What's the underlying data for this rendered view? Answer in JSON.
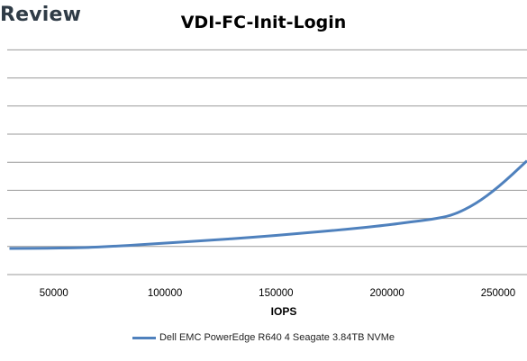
{
  "brand": {
    "text": "Review"
  },
  "chart_data": {
    "type": "line",
    "title": "VDI-FC-Init-Login",
    "xlabel": "IOPS",
    "ylabel": "",
    "x_ticks": [
      50000,
      100000,
      150000,
      200000,
      250000
    ],
    "xlim": [
      29000,
      263000
    ],
    "y_gridlines": 8,
    "grid": true,
    "legend_position": "bottom",
    "line_color": "#4f81bd",
    "series": [
      {
        "name": "Dell EMC PowerEdge R640 4 Seagate 3.84TB NVMe",
        "points": [
          [
            30000,
            0.93
          ],
          [
            60000,
            0.94
          ],
          [
            80000,
            1.02
          ],
          [
            100000,
            1.12
          ],
          [
            120000,
            1.22
          ],
          [
            140000,
            1.33
          ],
          [
            160000,
            1.46
          ],
          [
            180000,
            1.6
          ],
          [
            200000,
            1.76
          ],
          [
            210000,
            1.87
          ],
          [
            220000,
            1.96
          ],
          [
            230000,
            2.12
          ],
          [
            240000,
            2.52
          ],
          [
            250000,
            3.1
          ],
          [
            263000,
            4.05
          ]
        ]
      }
    ]
  }
}
